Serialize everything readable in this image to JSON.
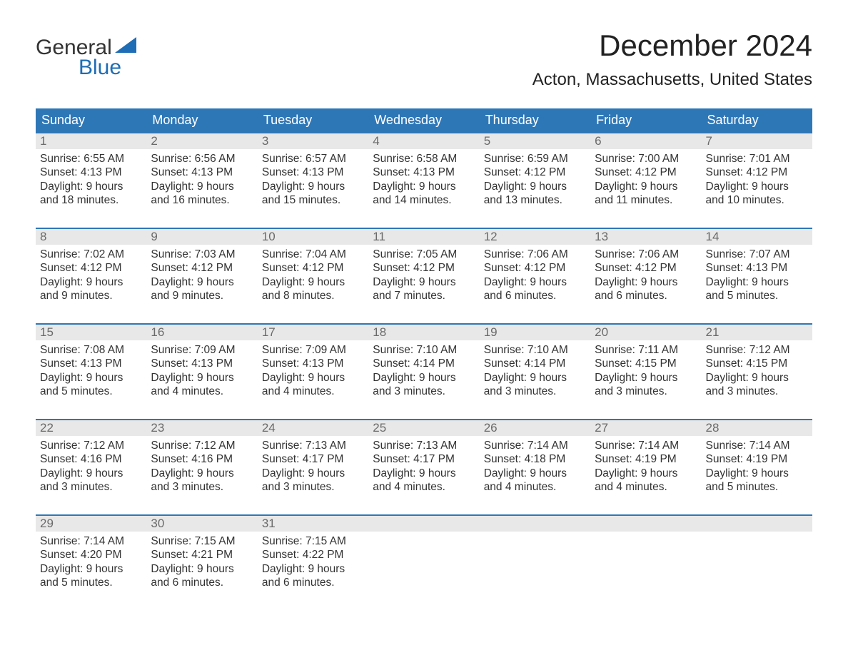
{
  "logo": {
    "word1": "General",
    "word2": "Blue"
  },
  "title": "December 2024",
  "location": "Acton, Massachusetts, United States",
  "colors": {
    "header_bg": "#2e77b7",
    "header_text": "#ffffff",
    "week_border": "#2e77b7",
    "daynum_bg": "#e8e8e8",
    "daynum_text": "#6a6a6a",
    "body_text": "#333333",
    "logo_blue": "#1e6db5"
  },
  "fonts": {
    "title_size": 42,
    "location_size": 24,
    "dow_size": 18,
    "daynum_size": 17,
    "body_size": 15.5
  },
  "days_of_week": [
    "Sunday",
    "Monday",
    "Tuesday",
    "Wednesday",
    "Thursday",
    "Friday",
    "Saturday"
  ],
  "labels": {
    "sunrise": "Sunrise:",
    "sunset": "Sunset:",
    "daylight": "Daylight:"
  },
  "weeks": [
    [
      {
        "n": "1",
        "sr": "6:55 AM",
        "ss": "4:13 PM",
        "dl1": "9 hours",
        "dl2": "and 18 minutes."
      },
      {
        "n": "2",
        "sr": "6:56 AM",
        "ss": "4:13 PM",
        "dl1": "9 hours",
        "dl2": "and 16 minutes."
      },
      {
        "n": "3",
        "sr": "6:57 AM",
        "ss": "4:13 PM",
        "dl1": "9 hours",
        "dl2": "and 15 minutes."
      },
      {
        "n": "4",
        "sr": "6:58 AM",
        "ss": "4:13 PM",
        "dl1": "9 hours",
        "dl2": "and 14 minutes."
      },
      {
        "n": "5",
        "sr": "6:59 AM",
        "ss": "4:12 PM",
        "dl1": "9 hours",
        "dl2": "and 13 minutes."
      },
      {
        "n": "6",
        "sr": "7:00 AM",
        "ss": "4:12 PM",
        "dl1": "9 hours",
        "dl2": "and 11 minutes."
      },
      {
        "n": "7",
        "sr": "7:01 AM",
        "ss": "4:12 PM",
        "dl1": "9 hours",
        "dl2": "and 10 minutes."
      }
    ],
    [
      {
        "n": "8",
        "sr": "7:02 AM",
        "ss": "4:12 PM",
        "dl1": "9 hours",
        "dl2": "and 9 minutes."
      },
      {
        "n": "9",
        "sr": "7:03 AM",
        "ss": "4:12 PM",
        "dl1": "9 hours",
        "dl2": "and 9 minutes."
      },
      {
        "n": "10",
        "sr": "7:04 AM",
        "ss": "4:12 PM",
        "dl1": "9 hours",
        "dl2": "and 8 minutes."
      },
      {
        "n": "11",
        "sr": "7:05 AM",
        "ss": "4:12 PM",
        "dl1": "9 hours",
        "dl2": "and 7 minutes."
      },
      {
        "n": "12",
        "sr": "7:06 AM",
        "ss": "4:12 PM",
        "dl1": "9 hours",
        "dl2": "and 6 minutes."
      },
      {
        "n": "13",
        "sr": "7:06 AM",
        "ss": "4:12 PM",
        "dl1": "9 hours",
        "dl2": "and 6 minutes."
      },
      {
        "n": "14",
        "sr": "7:07 AM",
        "ss": "4:13 PM",
        "dl1": "9 hours",
        "dl2": "and 5 minutes."
      }
    ],
    [
      {
        "n": "15",
        "sr": "7:08 AM",
        "ss": "4:13 PM",
        "dl1": "9 hours",
        "dl2": "and 5 minutes."
      },
      {
        "n": "16",
        "sr": "7:09 AM",
        "ss": "4:13 PM",
        "dl1": "9 hours",
        "dl2": "and 4 minutes."
      },
      {
        "n": "17",
        "sr": "7:09 AM",
        "ss": "4:13 PM",
        "dl1": "9 hours",
        "dl2": "and 4 minutes."
      },
      {
        "n": "18",
        "sr": "7:10 AM",
        "ss": "4:14 PM",
        "dl1": "9 hours",
        "dl2": "and 3 minutes."
      },
      {
        "n": "19",
        "sr": "7:10 AM",
        "ss": "4:14 PM",
        "dl1": "9 hours",
        "dl2": "and 3 minutes."
      },
      {
        "n": "20",
        "sr": "7:11 AM",
        "ss": "4:15 PM",
        "dl1": "9 hours",
        "dl2": "and 3 minutes."
      },
      {
        "n": "21",
        "sr": "7:12 AM",
        "ss": "4:15 PM",
        "dl1": "9 hours",
        "dl2": "and 3 minutes."
      }
    ],
    [
      {
        "n": "22",
        "sr": "7:12 AM",
        "ss": "4:16 PM",
        "dl1": "9 hours",
        "dl2": "and 3 minutes."
      },
      {
        "n": "23",
        "sr": "7:12 AM",
        "ss": "4:16 PM",
        "dl1": "9 hours",
        "dl2": "and 3 minutes."
      },
      {
        "n": "24",
        "sr": "7:13 AM",
        "ss": "4:17 PM",
        "dl1": "9 hours",
        "dl2": "and 3 minutes."
      },
      {
        "n": "25",
        "sr": "7:13 AM",
        "ss": "4:17 PM",
        "dl1": "9 hours",
        "dl2": "and 4 minutes."
      },
      {
        "n": "26",
        "sr": "7:14 AM",
        "ss": "4:18 PM",
        "dl1": "9 hours",
        "dl2": "and 4 minutes."
      },
      {
        "n": "27",
        "sr": "7:14 AM",
        "ss": "4:19 PM",
        "dl1": "9 hours",
        "dl2": "and 4 minutes."
      },
      {
        "n": "28",
        "sr": "7:14 AM",
        "ss": "4:19 PM",
        "dl1": "9 hours",
        "dl2": "and 5 minutes."
      }
    ],
    [
      {
        "n": "29",
        "sr": "7:14 AM",
        "ss": "4:20 PM",
        "dl1": "9 hours",
        "dl2": "and 5 minutes."
      },
      {
        "n": "30",
        "sr": "7:15 AM",
        "ss": "4:21 PM",
        "dl1": "9 hours",
        "dl2": "and 6 minutes."
      },
      {
        "n": "31",
        "sr": "7:15 AM",
        "ss": "4:22 PM",
        "dl1": "9 hours",
        "dl2": "and 6 minutes."
      },
      {
        "empty": true
      },
      {
        "empty": true
      },
      {
        "empty": true
      },
      {
        "empty": true
      }
    ]
  ]
}
